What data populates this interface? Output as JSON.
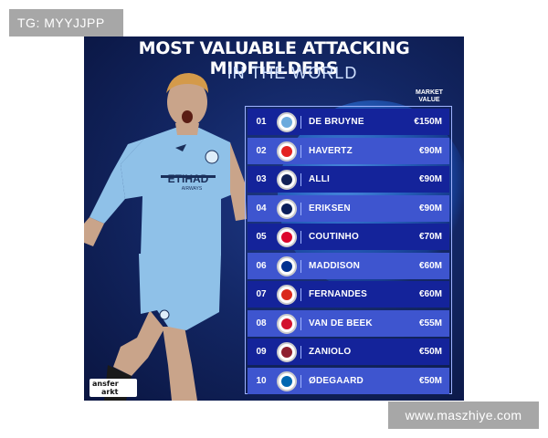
{
  "tags": {
    "top": "TG: MYYJJPP",
    "bottom": "www.maszhiye.com"
  },
  "poster": {
    "title": "MOST VALUABLE ATTACKING MIDFIELDERS",
    "subtitle": "IN THE WORLD",
    "market_value_label": "MARKET VALUE",
    "shirt_text": "ETIHAD",
    "shirt_subtext": "AIRWAYS",
    "logo_text_1": "ansfer",
    "logo_text_2": "arkt"
  },
  "rows": [
    {
      "rank": "01",
      "name": "DE BRUYNE",
      "value": "€150M",
      "crest_color": "#6cabdd"
    },
    {
      "rank": "02",
      "name": "HAVERTZ",
      "value": "€90M",
      "crest_color": "#e32221"
    },
    {
      "rank": "03",
      "name": "ALLI",
      "value": "€90M",
      "crest_color": "#132257"
    },
    {
      "rank": "04",
      "name": "ERIKSEN",
      "value": "€90M",
      "crest_color": "#0a1e5b"
    },
    {
      "rank": "05",
      "name": "COUTINHO",
      "value": "€70M",
      "crest_color": "#dc052d"
    },
    {
      "rank": "06",
      "name": "MADDISON",
      "value": "€60M",
      "crest_color": "#003090"
    },
    {
      "rank": "07",
      "name": "FERNANDES",
      "value": "€60M",
      "crest_color": "#da291c"
    },
    {
      "rank": "08",
      "name": "VAN DE BEEK",
      "value": "€55M",
      "crest_color": "#d2122e"
    },
    {
      "rank": "09",
      "name": "ZANIOLO",
      "value": "€50M",
      "crest_color": "#8e1f2f"
    },
    {
      "rank": "10",
      "name": "ØDEGAARD",
      "value": "€50M",
      "crest_color": "#0067b1"
    }
  ]
}
